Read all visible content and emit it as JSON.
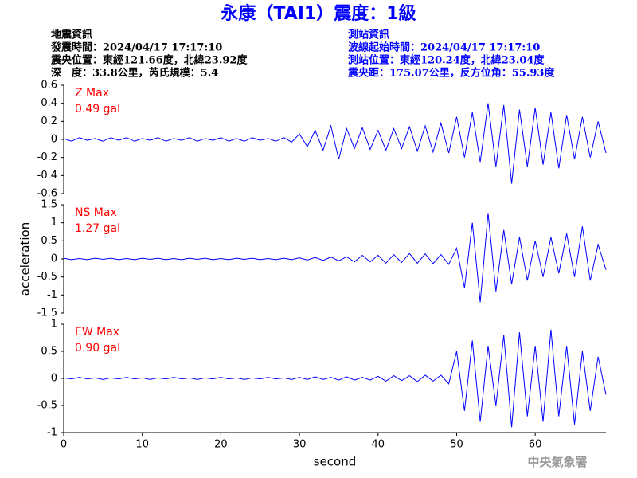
{
  "header": {
    "title": "永康（TAI1）震度：1級",
    "left": [
      "地震資訊",
      "發震時間：2024/04/17 17:17:10",
      "震央位置：東經121.66度，北緯23.92度",
      "深　度：33.8公里，芮氏規模：5.4"
    ],
    "right": [
      "測站資訊",
      "波線起始時間：2024/04/17 17:17:10",
      "測站位置：東經120.24度，北緯23.04度",
      "震央距：175.07公里，反方位角：55.93度"
    ],
    "footer": "中央氣象署"
  },
  "chart_data": [
    {
      "type": "line",
      "annotation": [
        "Z Max",
        "0.49 gal"
      ],
      "xlim": [
        0,
        69
      ],
      "ylim": [
        -0.6,
        0.6
      ],
      "yticks": [
        0.6,
        0.4,
        0.2,
        0,
        -0.2,
        -0.4,
        -0.6
      ],
      "x": [
        0,
        1,
        2,
        3,
        4,
        5,
        6,
        7,
        8,
        9,
        10,
        11,
        12,
        13,
        14,
        15,
        16,
        17,
        18,
        19,
        20,
        21,
        22,
        23,
        24,
        25,
        26,
        27,
        28,
        29,
        30,
        31,
        32,
        33,
        34,
        35,
        36,
        37,
        38,
        39,
        40,
        41,
        42,
        43,
        44,
        45,
        46,
        47,
        48,
        49,
        50,
        51,
        52,
        53,
        54,
        55,
        56,
        57,
        58,
        59,
        60,
        61,
        62,
        63,
        64,
        65,
        66,
        67,
        68,
        69
      ],
      "series": [
        {
          "color": "#0000ff",
          "values": [
            0.01,
            -0.02,
            0.02,
            -0.01,
            0.01,
            -0.02,
            0.02,
            -0.01,
            0.02,
            -0.02,
            0.01,
            -0.01,
            0.02,
            -0.02,
            0.01,
            -0.01,
            0.02,
            -0.02,
            0.01,
            -0.01,
            0.02,
            -0.02,
            0.01,
            -0.02,
            0.02,
            -0.01,
            0.01,
            -0.02,
            0.02,
            -0.03,
            0.06,
            -0.08,
            0.1,
            -0.12,
            0.15,
            -0.22,
            0.12,
            -0.1,
            0.13,
            -0.11,
            0.1,
            -0.12,
            0.12,
            -0.1,
            0.14,
            -0.13,
            0.15,
            -0.14,
            0.18,
            -0.15,
            0.25,
            -0.2,
            0.3,
            -0.25,
            0.4,
            -0.3,
            0.38,
            -0.49,
            0.33,
            -0.3,
            0.35,
            -0.28,
            0.3,
            -0.32,
            0.27,
            -0.22,
            0.25,
            -0.2,
            0.2,
            -0.15
          ]
        }
      ]
    },
    {
      "type": "line",
      "annotation": [
        "NS Max",
        "1.27 gal"
      ],
      "ylabel": "acceleration",
      "xlim": [
        0,
        69
      ],
      "ylim": [
        -1.5,
        1.5
      ],
      "yticks": [
        1.5,
        1,
        0.5,
        0,
        -0.5,
        -1,
        -1.5
      ],
      "x": [
        0,
        1,
        2,
        3,
        4,
        5,
        6,
        7,
        8,
        9,
        10,
        11,
        12,
        13,
        14,
        15,
        16,
        17,
        18,
        19,
        20,
        21,
        22,
        23,
        24,
        25,
        26,
        27,
        28,
        29,
        30,
        31,
        32,
        33,
        34,
        35,
        36,
        37,
        38,
        39,
        40,
        41,
        42,
        43,
        44,
        45,
        46,
        47,
        48,
        49,
        50,
        51,
        52,
        53,
        54,
        55,
        56,
        57,
        58,
        59,
        60,
        61,
        62,
        63,
        64,
        65,
        66,
        67,
        68,
        69
      ],
      "series": [
        {
          "color": "#0000ff",
          "values": [
            0.02,
            -0.02,
            0.01,
            -0.02,
            0.02,
            -0.01,
            0.02,
            -0.02,
            0.01,
            -0.02,
            0.02,
            -0.01,
            0.02,
            -0.02,
            0.01,
            -0.02,
            0.02,
            -0.01,
            0.02,
            -0.02,
            0.01,
            -0.02,
            0.02,
            -0.01,
            0.02,
            -0.02,
            0.01,
            -0.02,
            0.02,
            -0.02,
            0.03,
            -0.03,
            0.04,
            -0.04,
            0.05,
            -0.05,
            0.06,
            -0.08,
            0.1,
            -0.08,
            0.1,
            -0.12,
            0.12,
            -0.1,
            0.15,
            -0.12,
            0.14,
            -0.13,
            0.12,
            -0.15,
            0.3,
            -0.8,
            1.0,
            -1.2,
            1.27,
            -0.9,
            0.8,
            -0.7,
            0.6,
            -0.6,
            0.5,
            -0.5,
            0.6,
            -0.4,
            0.7,
            -0.5,
            0.9,
            -0.6,
            0.4,
            -0.3
          ]
        }
      ]
    },
    {
      "type": "line",
      "annotation": [
        "EW Max",
        "0.90 gal"
      ],
      "xlabel": "second",
      "xlim": [
        0,
        69
      ],
      "xticks": [
        0,
        10,
        20,
        30,
        40,
        50,
        60
      ],
      "ylim": [
        -1,
        1
      ],
      "yticks": [
        1,
        0.5,
        0,
        -0.5,
        -1
      ],
      "x": [
        0,
        1,
        2,
        3,
        4,
        5,
        6,
        7,
        8,
        9,
        10,
        11,
        12,
        13,
        14,
        15,
        16,
        17,
        18,
        19,
        20,
        21,
        22,
        23,
        24,
        25,
        26,
        27,
        28,
        29,
        30,
        31,
        32,
        33,
        34,
        35,
        36,
        37,
        38,
        39,
        40,
        41,
        42,
        43,
        44,
        45,
        46,
        47,
        48,
        49,
        50,
        51,
        52,
        53,
        54,
        55,
        56,
        57,
        58,
        59,
        60,
        61,
        62,
        63,
        64,
        65,
        66,
        67,
        68,
        69
      ],
      "series": [
        {
          "color": "#0000ff",
          "values": [
            0.01,
            -0.01,
            0.02,
            -0.01,
            0.01,
            -0.02,
            0.01,
            -0.01,
            0.02,
            -0.01,
            0.01,
            -0.02,
            0.01,
            -0.01,
            0.02,
            -0.01,
            0.01,
            -0.02,
            0.01,
            -0.01,
            0.02,
            -0.01,
            0.01,
            -0.02,
            0.01,
            -0.01,
            0.02,
            -0.01,
            0.01,
            -0.02,
            0.02,
            -0.02,
            0.03,
            -0.02,
            0.02,
            -0.03,
            0.03,
            -0.03,
            0.02,
            -0.03,
            0.04,
            -0.05,
            0.05,
            -0.04,
            0.05,
            -0.06,
            0.06,
            -0.05,
            0.06,
            -0.1,
            0.5,
            -0.6,
            0.7,
            -0.8,
            0.6,
            -0.5,
            0.8,
            -0.9,
            0.85,
            -0.7,
            0.6,
            -0.8,
            0.9,
            -0.7,
            0.6,
            -0.85,
            0.5,
            -0.6,
            0.4,
            -0.3
          ]
        }
      ]
    }
  ]
}
